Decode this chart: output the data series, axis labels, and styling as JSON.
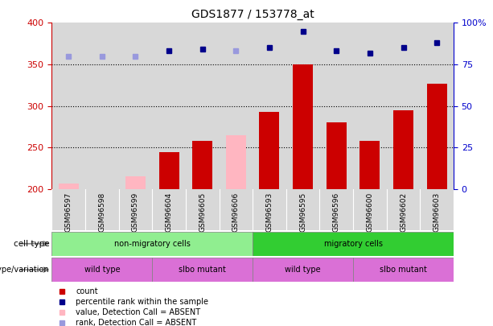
{
  "title": "GDS1877 / 153778_at",
  "samples": [
    "GSM96597",
    "GSM96598",
    "GSM96599",
    "GSM96604",
    "GSM96605",
    "GSM96606",
    "GSM96593",
    "GSM96595",
    "GSM96596",
    "GSM96600",
    "GSM96602",
    "GSM96603"
  ],
  "bar_values": [
    207,
    200,
    215,
    244,
    258,
    265,
    293,
    350,
    280,
    258,
    295,
    327
  ],
  "bar_absent": [
    true,
    false,
    true,
    false,
    false,
    true,
    false,
    false,
    false,
    false,
    false,
    false
  ],
  "rank_values": [
    80,
    80,
    80,
    83,
    84,
    83,
    85,
    95,
    83,
    82,
    85,
    88
  ],
  "rank_absent": [
    true,
    true,
    true,
    false,
    false,
    true,
    false,
    false,
    false,
    false,
    false,
    false
  ],
  "ylim_left": [
    200,
    400
  ],
  "ylim_right": [
    0,
    100
  ],
  "yticks_left": [
    200,
    250,
    300,
    350,
    400
  ],
  "yticks_right": [
    0,
    25,
    50,
    75,
    100
  ],
  "bar_color_present": "#CC0000",
  "bar_color_absent": "#FFB6C1",
  "rank_color_present": "#00008B",
  "rank_color_absent": "#9999DD",
  "label_color_left": "#CC0000",
  "label_color_right": "#0000CC",
  "cell_type_row_color1": "#90EE90",
  "cell_type_row_color2": "#32CD32",
  "genotype_color": "#DA70D6",
  "col_bg_color": "#D8D8D8",
  "geno_groups": [
    {
      "label": "wild type",
      "start": 0,
      "end": 3
    },
    {
      "label": "slbo mutant",
      "start": 3,
      "end": 6
    },
    {
      "label": "wild type",
      "start": 6,
      "end": 9
    },
    {
      "label": "slbo mutant",
      "start": 9,
      "end": 12
    }
  ]
}
